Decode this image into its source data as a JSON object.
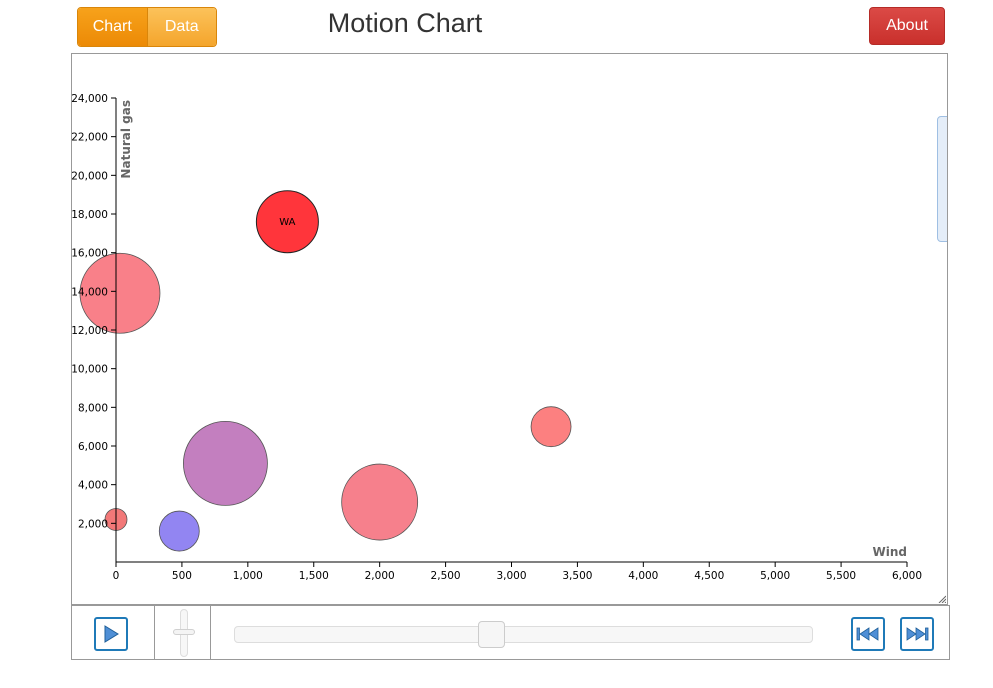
{
  "header": {
    "tabs": [
      {
        "label": "Chart",
        "active": true
      },
      {
        "label": "Data",
        "active": false
      }
    ],
    "title": "Motion Chart",
    "about_label": "About"
  },
  "chart_data": {
    "type": "scatter",
    "xlabel": "Wind",
    "ylabel": "Natural gas",
    "xlim": [
      0,
      6000
    ],
    "ylim": [
      0,
      24000
    ],
    "x_ticks": [
      0,
      500,
      1000,
      1500,
      2000,
      2500,
      3000,
      3500,
      4000,
      4500,
      5000,
      5500,
      6000
    ],
    "y_ticks": [
      2000,
      4000,
      6000,
      8000,
      10000,
      12000,
      14000,
      16000,
      18000,
      20000,
      22000,
      24000
    ],
    "grid": false,
    "points": [
      {
        "x": 0,
        "y": 2200,
        "size": 11,
        "color": "#f06060",
        "label": ""
      },
      {
        "x": 480,
        "y": 1600,
        "size": 20,
        "color": "#7f70f0",
        "label": ""
      },
      {
        "x": 830,
        "y": 5100,
        "size": 42,
        "color": "#b869b4",
        "label": ""
      },
      {
        "x": 1300,
        "y": 17600,
        "size": 31,
        "color": "#ff2a30",
        "label": "WA"
      },
      {
        "x": 30,
        "y": 13900,
        "size": 40,
        "color": "#f86a74",
        "label": ""
      },
      {
        "x": 2000,
        "y": 3100,
        "size": 38,
        "color": "#f56a78",
        "label": ""
      },
      {
        "x": 3300,
        "y": 7000,
        "size": 20,
        "color": "#fb6a6a",
        "label": ""
      }
    ]
  },
  "controls": {
    "play_icon": "play-icon",
    "speed_value": 0.5,
    "time_position": 0.44,
    "rewind_icon": "skip-back-icon",
    "forward_icon": "skip-forward-icon"
  },
  "colors": {
    "accent_orange": "#f39c12",
    "about_red": "#d9534f",
    "control_blue": "#1f7ab8"
  }
}
